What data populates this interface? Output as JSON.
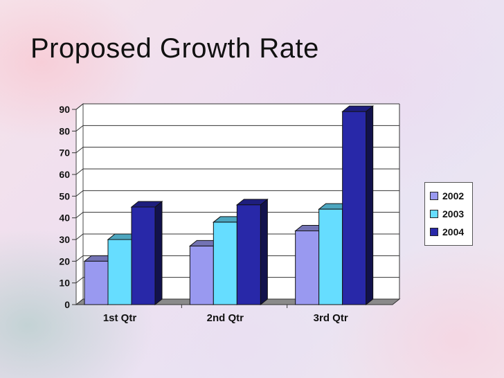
{
  "slide": {
    "title": "Proposed Growth Rate"
  },
  "chart_data": {
    "type": "bar",
    "categories": [
      "1st Qtr",
      "2nd Qtr",
      "3rd Qtr"
    ],
    "series": [
      {
        "name": "2002",
        "values": [
          20,
          27,
          34
        ],
        "color": "#9999f0"
      },
      {
        "name": "2003",
        "values": [
          30,
          38,
          44
        ],
        "color": "#66ddff"
      },
      {
        "name": "2004",
        "values": [
          45,
          46,
          89
        ],
        "color": "#2828a8"
      }
    ],
    "ylim": [
      0,
      90
    ],
    "yticks": [
      0,
      10,
      20,
      30,
      40,
      50,
      60,
      70,
      80,
      90
    ],
    "grid": true,
    "legend": "right",
    "style": "3d"
  }
}
